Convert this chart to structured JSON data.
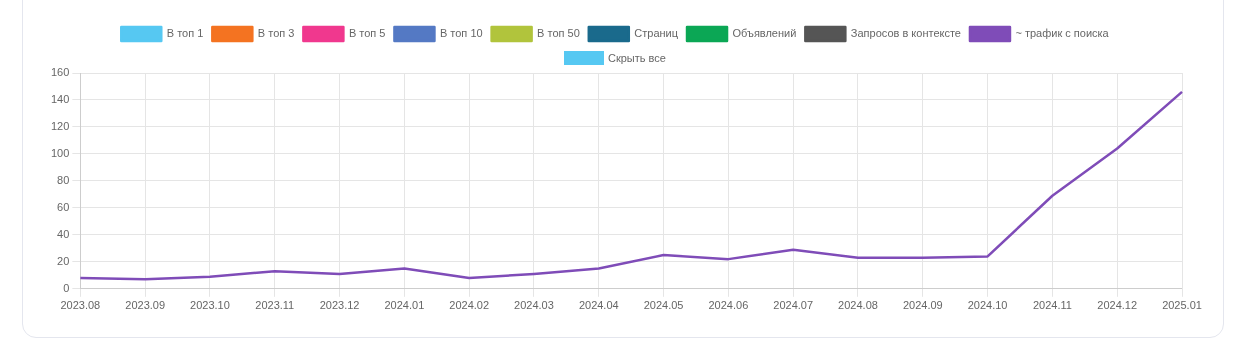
{
  "chart_data": {
    "type": "line",
    "categories": [
      "2023.08",
      "2023.09",
      "2023.10",
      "2023.11",
      "2023.12",
      "2024.01",
      "2024.02",
      "2024.03",
      "2024.04",
      "2024.05",
      "2024.06",
      "2024.07",
      "2024.08",
      "2024.09",
      "2024.10",
      "2024.11",
      "2024.12",
      "2025.01"
    ],
    "series": [
      {
        "name": "В топ 1",
        "color": "#56c8f2",
        "values": [
          null,
          null,
          null,
          null,
          null,
          null,
          null,
          null,
          null,
          null,
          null,
          null,
          null,
          null,
          null,
          null,
          null,
          null
        ]
      },
      {
        "name": "В топ 3",
        "color": "#f47321",
        "values": [
          null,
          null,
          null,
          null,
          null,
          null,
          null,
          null,
          null,
          null,
          null,
          null,
          null,
          null,
          null,
          null,
          null,
          null
        ]
      },
      {
        "name": "В топ 5",
        "color": "#f0388e",
        "values": [
          null,
          null,
          null,
          null,
          null,
          null,
          null,
          null,
          null,
          null,
          null,
          null,
          null,
          null,
          null,
          null,
          null,
          null
        ]
      },
      {
        "name": "В топ 10",
        "color": "#5479c4",
        "values": [
          null,
          null,
          null,
          null,
          null,
          null,
          null,
          null,
          null,
          null,
          null,
          null,
          null,
          null,
          null,
          null,
          null,
          null
        ]
      },
      {
        "name": "В топ 50",
        "color": "#b1c43c",
        "values": [
          null,
          null,
          null,
          null,
          null,
          null,
          null,
          null,
          null,
          null,
          null,
          null,
          null,
          null,
          null,
          null,
          null,
          null
        ]
      },
      {
        "name": "Страниц",
        "color": "#1a6a8c",
        "values": [
          null,
          null,
          null,
          null,
          null,
          null,
          null,
          null,
          null,
          null,
          null,
          null,
          null,
          null,
          null,
          null,
          null,
          null
        ]
      },
      {
        "name": "Объявлений",
        "color": "#0ba755",
        "values": [
          null,
          null,
          null,
          null,
          null,
          null,
          null,
          null,
          null,
          null,
          null,
          null,
          null,
          null,
          null,
          null,
          null,
          null
        ]
      },
      {
        "name": "Запросов в контексте",
        "color": "#555555",
        "values": [
          null,
          null,
          null,
          null,
          null,
          null,
          null,
          null,
          null,
          null,
          null,
          null,
          null,
          null,
          null,
          null,
          null,
          null
        ]
      },
      {
        "name": "~ трафик с поиска",
        "color": "#7f4cb8",
        "values": [
          8,
          7,
          9,
          13,
          11,
          15,
          8,
          11,
          15,
          25,
          22,
          29,
          23,
          23,
          24,
          69,
          104,
          146
        ]
      }
    ],
    "annotations": [
      "Скрыть все"
    ],
    "ylim": [
      0,
      160
    ],
    "yticks": [
      0,
      20,
      40,
      60,
      80,
      100,
      120,
      140,
      160
    ],
    "grid": true,
    "legend": "top",
    "marker": "none",
    "line_style": "solid"
  }
}
